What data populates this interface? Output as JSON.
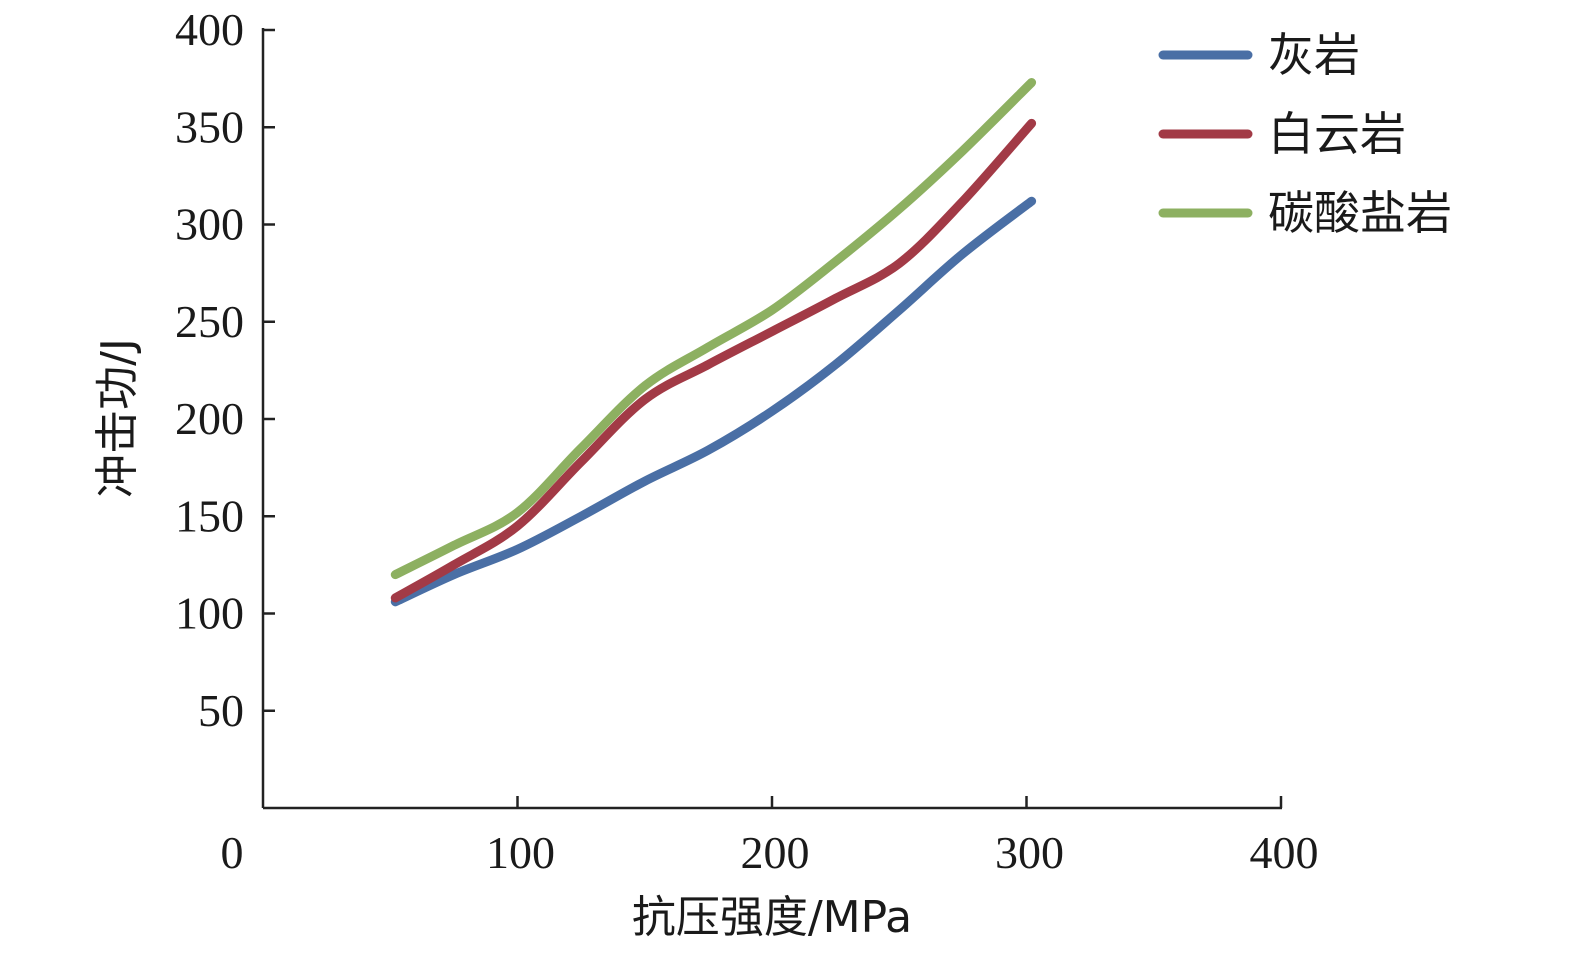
{
  "chart_data": {
    "type": "line",
    "title": "",
    "xlabel": "抗压强度/MPa",
    "ylabel": "冲击功/J",
    "xlim": [
      0,
      400
    ],
    "ylim": [
      0,
      400
    ],
    "x_ticks": [
      {
        "value": 0,
        "label": "0"
      },
      {
        "value": 100,
        "label": "100"
      },
      {
        "value": 200,
        "label": "200"
      },
      {
        "value": 300,
        "label": "300"
      },
      {
        "value": 400,
        "label": "400"
      }
    ],
    "y_ticks": [
      {
        "value": 50,
        "label": "50"
      },
      {
        "value": 100,
        "label": "100"
      },
      {
        "value": 150,
        "label": "150"
      },
      {
        "value": 200,
        "label": "200"
      },
      {
        "value": 250,
        "label": "250"
      },
      {
        "value": 300,
        "label": "300"
      },
      {
        "value": 350,
        "label": "350"
      },
      {
        "value": 400,
        "label": "400"
      }
    ],
    "grid": false,
    "legend_position": "top-right",
    "series": [
      {
        "name": "灰岩",
        "color": "#4a6fa5",
        "x": [
          52,
          75,
          100,
          125,
          150,
          175,
          200,
          225,
          250,
          275,
          302
        ],
        "y": [
          106,
          120,
          133,
          150,
          168,
          184,
          204,
          228,
          256,
          285,
          312
        ]
      },
      {
        "name": "白云岩",
        "color": "#a23a46",
        "x": [
          52,
          75,
          100,
          125,
          150,
          175,
          200,
          225,
          250,
          275,
          302
        ],
        "y": [
          108,
          125,
          145,
          178,
          210,
          228,
          245,
          262,
          280,
          312,
          352
        ]
      },
      {
        "name": "碳酸盐岩",
        "color": "#8db061",
        "x": [
          52,
          75,
          100,
          125,
          150,
          175,
          200,
          225,
          250,
          275,
          302
        ],
        "y": [
          120,
          135,
          152,
          185,
          217,
          237,
          256,
          281,
          308,
          338,
          373
        ]
      }
    ]
  }
}
